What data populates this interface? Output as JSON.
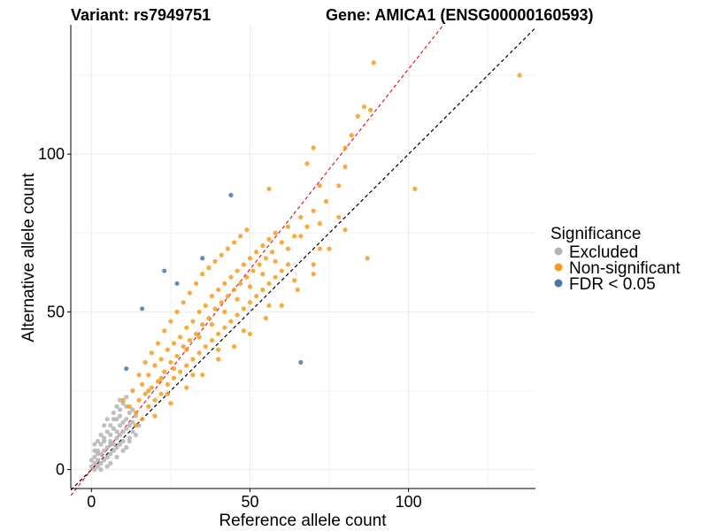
{
  "chart_data": {
    "type": "scatter",
    "title_left": "Variant: rs7949751",
    "title_right": "Gene: AMICA1 (ENSG00000160593)",
    "xlabel": "Reference allele count",
    "ylabel": "Alternative allele count",
    "xlim": [
      -6.5,
      140
    ],
    "ylim": [
      -6,
      141
    ],
    "x_ticks": [
      0,
      50,
      100
    ],
    "y_ticks": [
      0,
      50,
      100
    ],
    "grid": true,
    "legend": {
      "title": "Significance",
      "placement": "right",
      "entries": [
        {
          "label": "Excluded",
          "color": "#b4b4b4"
        },
        {
          "label": "Non-significant",
          "color": "#f89b1c"
        },
        {
          "label": "FDR < 0.05",
          "color": "#4a77aa"
        }
      ]
    },
    "reference_lines": [
      {
        "style": "dashed",
        "color": "#000000",
        "slope": 1.0,
        "intercept": 0
      },
      {
        "style": "dashed",
        "color": "#e31a1c",
        "slope": 1.27,
        "intercept": 0
      }
    ],
    "series": [
      {
        "name": "Excluded",
        "color": "#b4b4b4",
        "points": [
          [
            0,
            1
          ],
          [
            1,
            0
          ],
          [
            1,
            2
          ],
          [
            2,
            1
          ],
          [
            2,
            3
          ],
          [
            3,
            2
          ],
          [
            1,
            4
          ],
          [
            3,
            5
          ],
          [
            4,
            3
          ],
          [
            4,
            6
          ],
          [
            5,
            4
          ],
          [
            5,
            7
          ],
          [
            6,
            5
          ],
          [
            2,
            6
          ],
          [
            3,
            8
          ],
          [
            6,
            9
          ],
          [
            7,
            6
          ],
          [
            7,
            8
          ],
          [
            8,
            7
          ],
          [
            8,
            10
          ],
          [
            9,
            8
          ],
          [
            9,
            11
          ],
          [
            10,
            9
          ],
          [
            4,
            10
          ],
          [
            5,
            12
          ],
          [
            6,
            11
          ],
          [
            6,
            14
          ],
          [
            7,
            13
          ],
          [
            8,
            12
          ],
          [
            8,
            16
          ],
          [
            9,
            14
          ],
          [
            9,
            17
          ],
          [
            10,
            12
          ],
          [
            10,
            15
          ],
          [
            11,
            13
          ],
          [
            11,
            16
          ],
          [
            12,
            14
          ],
          [
            12,
            18
          ],
          [
            13,
            15
          ],
          [
            7,
            18
          ],
          [
            8,
            20
          ],
          [
            9,
            19
          ],
          [
            10,
            21
          ],
          [
            11,
            20
          ],
          [
            5,
            16
          ],
          [
            4,
            14
          ],
          [
            3,
            11
          ],
          [
            2,
            9
          ],
          [
            12,
            10
          ],
          [
            13,
            12
          ],
          [
            11,
            7
          ],
          [
            10,
            6
          ],
          [
            6,
            2
          ],
          [
            8,
            4
          ],
          [
            0,
            3
          ],
          [
            1,
            6
          ],
          [
            14,
            11
          ],
          [
            7,
            16
          ],
          [
            9,
            22
          ],
          [
            11,
            23
          ],
          [
            13,
            19
          ],
          [
            14,
            17
          ],
          [
            15,
            14
          ],
          [
            12,
            9
          ],
          [
            3,
            0
          ],
          [
            5,
            1
          ],
          [
            6,
            8
          ],
          [
            4,
            9
          ],
          [
            2,
            5
          ],
          [
            1,
            8
          ]
        ]
      },
      {
        "name": "Non-significant",
        "color": "#f89b1c",
        "points": [
          [
            10,
            22
          ],
          [
            12,
            20
          ],
          [
            13,
            25
          ],
          [
            14,
            18
          ],
          [
            15,
            22
          ],
          [
            16,
            27
          ],
          [
            17,
            24
          ],
          [
            18,
            30
          ],
          [
            19,
            26
          ],
          [
            20,
            33
          ],
          [
            21,
            28
          ],
          [
            22,
            35
          ],
          [
            23,
            31
          ],
          [
            24,
            38
          ],
          [
            25,
            34
          ],
          [
            26,
            40
          ],
          [
            27,
            36
          ],
          [
            28,
            42
          ],
          [
            29,
            39
          ],
          [
            30,
            45
          ],
          [
            31,
            41
          ],
          [
            32,
            47
          ],
          [
            33,
            43
          ],
          [
            34,
            50
          ],
          [
            35,
            46
          ],
          [
            36,
            52
          ],
          [
            37,
            48
          ],
          [
            38,
            55
          ],
          [
            39,
            51
          ],
          [
            40,
            57
          ],
          [
            41,
            53
          ],
          [
            42,
            59
          ],
          [
            43,
            55
          ],
          [
            44,
            61
          ],
          [
            45,
            57
          ],
          [
            46,
            63
          ],
          [
            47,
            59
          ],
          [
            48,
            65
          ],
          [
            49,
            61
          ],
          [
            50,
            67
          ],
          [
            51,
            63
          ],
          [
            52,
            69
          ],
          [
            53,
            65
          ],
          [
            54,
            71
          ],
          [
            55,
            67
          ],
          [
            56,
            73
          ],
          [
            57,
            69
          ],
          [
            58,
            75
          ],
          [
            60,
            72
          ],
          [
            62,
            77
          ],
          [
            64,
            74
          ],
          [
            66,
            80
          ],
          [
            68,
            77
          ],
          [
            70,
            82
          ],
          [
            72,
            78
          ],
          [
            74,
            85
          ],
          [
            18,
            20
          ],
          [
            20,
            22
          ],
          [
            22,
            24
          ],
          [
            24,
            27
          ],
          [
            26,
            29
          ],
          [
            28,
            31
          ],
          [
            30,
            33
          ],
          [
            32,
            35
          ],
          [
            34,
            37
          ],
          [
            36,
            39
          ],
          [
            38,
            41
          ],
          [
            40,
            43
          ],
          [
            42,
            45
          ],
          [
            44,
            47
          ],
          [
            46,
            49
          ],
          [
            48,
            51
          ],
          [
            50,
            53
          ],
          [
            52,
            55
          ],
          [
            54,
            57
          ],
          [
            56,
            59
          ],
          [
            58,
            61
          ],
          [
            60,
            63
          ],
          [
            62,
            65
          ],
          [
            15,
            30
          ],
          [
            17,
            34
          ],
          [
            19,
            37
          ],
          [
            21,
            40
          ],
          [
            23,
            44
          ],
          [
            25,
            47
          ],
          [
            27,
            50
          ],
          [
            29,
            53
          ],
          [
            31,
            56
          ],
          [
            33,
            59
          ],
          [
            35,
            62
          ],
          [
            37,
            64
          ],
          [
            39,
            66
          ],
          [
            41,
            68
          ],
          [
            43,
            70
          ],
          [
            45,
            72
          ],
          [
            47,
            74
          ],
          [
            49,
            76
          ],
          [
            20,
            17
          ],
          [
            25,
            21
          ],
          [
            30,
            26
          ],
          [
            35,
            30
          ],
          [
            40,
            35
          ],
          [
            45,
            39
          ],
          [
            50,
            43
          ],
          [
            55,
            48
          ],
          [
            60,
            52
          ],
          [
            65,
            57
          ],
          [
            70,
            62
          ],
          [
            14,
            14
          ],
          [
            16,
            16
          ],
          [
            18,
            25
          ],
          [
            22,
            29
          ],
          [
            26,
            32
          ],
          [
            30,
            38
          ],
          [
            34,
            42
          ],
          [
            38,
            46
          ],
          [
            42,
            50
          ],
          [
            46,
            54
          ],
          [
            50,
            58
          ],
          [
            54,
            62
          ],
          [
            58,
            66
          ],
          [
            62,
            70
          ],
          [
            66,
            74
          ],
          [
            70,
            65
          ],
          [
            75,
            70
          ],
          [
            78,
            80
          ],
          [
            80,
            76
          ],
          [
            72,
            70
          ],
          [
            64,
            60
          ],
          [
            56,
            52
          ],
          [
            48,
            44
          ],
          [
            40,
            38
          ],
          [
            32,
            30
          ],
          [
            24,
            24
          ],
          [
            78,
            90
          ],
          [
            80,
            96
          ],
          [
            82,
            106
          ],
          [
            84,
            112
          ],
          [
            86,
            115
          ],
          [
            88,
            114
          ],
          [
            89,
            129
          ],
          [
            70,
            102
          ],
          [
            68,
            97
          ],
          [
            80,
            102
          ],
          [
            72,
            90
          ],
          [
            56,
            89
          ],
          [
            102,
            89
          ],
          [
            87,
            67
          ],
          [
            135,
            125
          ]
        ]
      },
      {
        "name": "FDR < 0.05",
        "color": "#4a77aa",
        "points": [
          [
            11,
            32
          ],
          [
            16,
            51
          ],
          [
            23,
            63
          ],
          [
            27,
            59
          ],
          [
            35,
            67
          ],
          [
            44,
            87
          ],
          [
            66,
            34
          ]
        ]
      }
    ]
  }
}
